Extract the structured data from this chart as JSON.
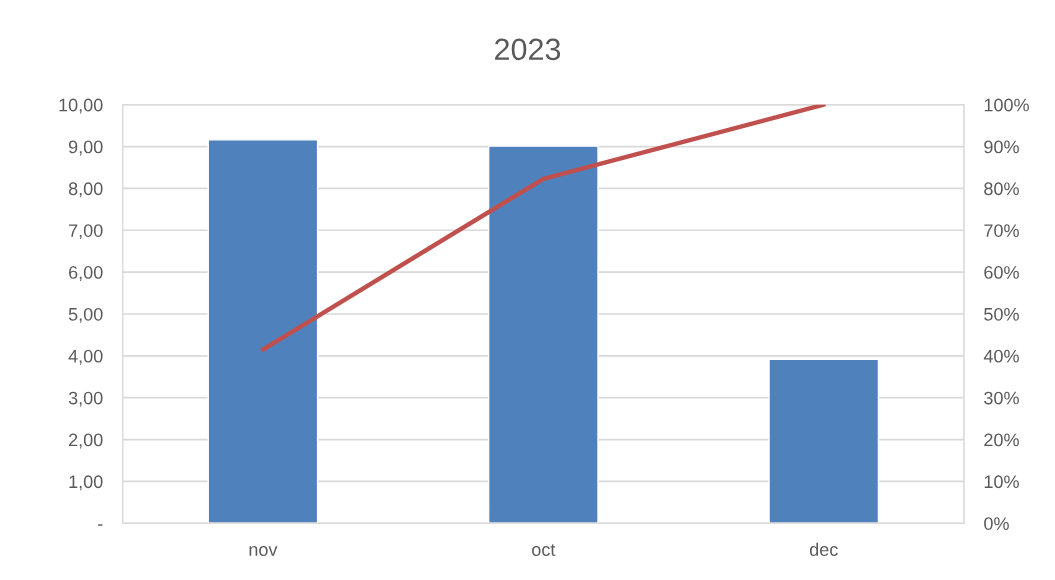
{
  "chart_data": {
    "type": "bar",
    "title": "2023",
    "categories": [
      "nov",
      "oct",
      "dec"
    ],
    "series": [
      {
        "color": "#4f81bd",
        "values": [
          9.16,
          9.01,
          3.92
        ]
      },
      {
        "type": "line",
        "axis": "y2",
        "color": "#c0504d",
        "values": [
          41.5,
          82.3,
          100
        ],
        "marker": "none",
        "line_style": "solid"
      }
    ],
    "ylim": [
      0,
      10
    ],
    "yticks": [
      {
        "value": 0,
        "label": "-"
      },
      {
        "value": 1,
        "label": "1,00"
      },
      {
        "value": 2,
        "label": "2,00"
      },
      {
        "value": 3,
        "label": "3,00"
      },
      {
        "value": 4,
        "label": "4,00"
      },
      {
        "value": 5,
        "label": "5,00"
      },
      {
        "value": 6,
        "label": "6,00"
      },
      {
        "value": 7,
        "label": "7,00"
      },
      {
        "value": 8,
        "label": "8,00"
      },
      {
        "value": 9,
        "label": "9,00"
      },
      {
        "value": 10,
        "label": "10,00"
      }
    ],
    "y2lim": [
      0,
      100
    ],
    "y2ticks": [
      {
        "value": 0,
        "label": "0%"
      },
      {
        "value": 10,
        "label": "10%"
      },
      {
        "value": 20,
        "label": "20%"
      },
      {
        "value": 30,
        "label": "30%"
      },
      {
        "value": 40,
        "label": "40%"
      },
      {
        "value": 50,
        "label": "50%"
      },
      {
        "value": 60,
        "label": "60%"
      },
      {
        "value": 70,
        "label": "70%"
      },
      {
        "value": 80,
        "label": "80%"
      },
      {
        "value": 90,
        "label": "90%"
      },
      {
        "value": 100,
        "label": "100%"
      }
    ],
    "grid": "y"
  }
}
